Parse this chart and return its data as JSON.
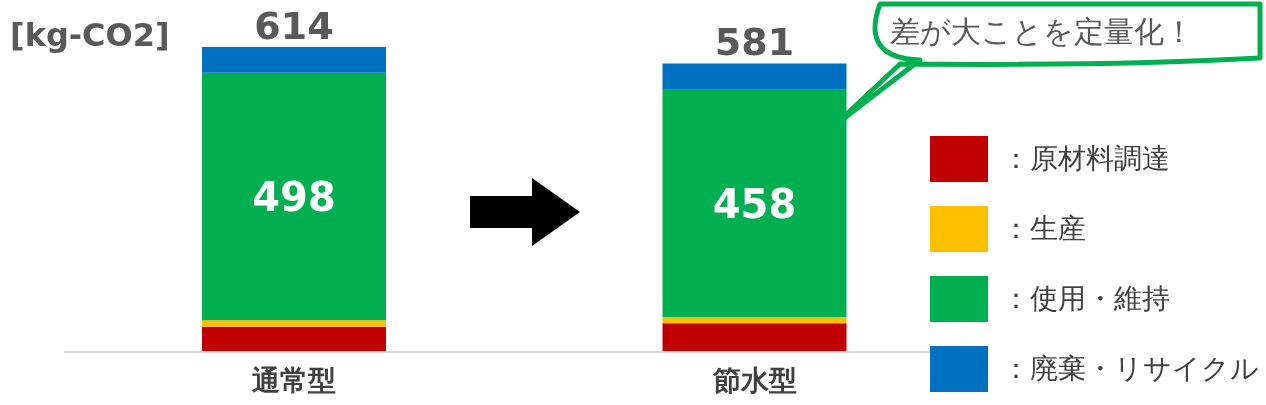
{
  "chart_data": {
    "type": "bar",
    "stacked": true,
    "ylabel": "[kg-CO2]",
    "categories": [
      "通常型",
      "節水型"
    ],
    "series": [
      {
        "name": "：原材料調達",
        "color": "#c00000",
        "values": [
          51,
          58
        ]
      },
      {
        "name": "：生産",
        "color": "#ffc000",
        "values": [
          13,
          12
        ]
      },
      {
        "name": "：使用・維持",
        "color": "#00b050",
        "values": [
          498,
          458
        ],
        "value_labels": [
          "498",
          "458"
        ]
      },
      {
        "name": "：廃棄・リサイクル",
        "color": "#0070c0",
        "values": [
          52,
          53
        ]
      }
    ],
    "totals": [
      "614",
      "581"
    ],
    "tick_labels": "x",
    "legend": "right",
    "annotations": [
      "差が大ことを定量化！"
    ]
  }
}
